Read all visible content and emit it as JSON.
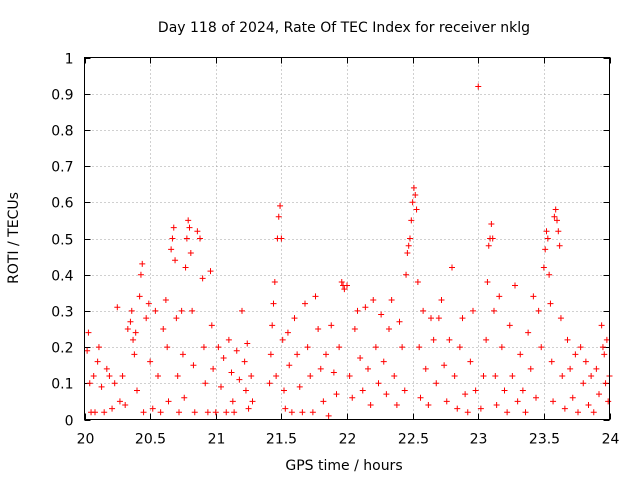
{
  "chart_data": {
    "type": "scatter",
    "title": "Day 118 of 2024, Rate Of TEC Index for receiver nklg",
    "xlabel": "GPS time / hours",
    "ylabel": "ROTI / TECUs",
    "xlim": [
      20,
      24
    ],
    "ylim": [
      0,
      1
    ],
    "xticks": [
      "20",
      "20.5",
      "21",
      "21.5",
      "22",
      "22.5",
      "23",
      "23.5",
      "24"
    ],
    "yticks": [
      "0",
      "0.1",
      "0.2",
      "0.3",
      "0.4",
      "0.5",
      "0.6",
      "0.7",
      "0.8",
      "0.9",
      "1"
    ],
    "grid": true,
    "marker": "+",
    "color": "#ff0000",
    "series": [
      {
        "points": [
          [
            20.02,
            0.19
          ],
          [
            20.03,
            0.24
          ],
          [
            20.04,
            0.1
          ],
          [
            20.05,
            0.02
          ],
          [
            20.07,
            0.12
          ],
          [
            20.08,
            0.02
          ],
          [
            20.1,
            0.16
          ],
          [
            20.11,
            0.2
          ],
          [
            20.13,
            0.09
          ],
          [
            20.15,
            0.02
          ],
          [
            20.17,
            0.14
          ],
          [
            20.19,
            0.12
          ],
          [
            20.21,
            0.03
          ],
          [
            20.23,
            0.1
          ],
          [
            20.25,
            0.31
          ],
          [
            20.27,
            0.05
          ],
          [
            20.29,
            0.12
          ],
          [
            20.31,
            0.04
          ],
          [
            20.33,
            0.25
          ],
          [
            20.35,
            0.27
          ],
          [
            20.36,
            0.3
          ],
          [
            20.37,
            0.22
          ],
          [
            20.38,
            0.18
          ],
          [
            20.39,
            0.24
          ],
          [
            20.4,
            0.08
          ],
          [
            20.42,
            0.34
          ],
          [
            20.43,
            0.4
          ],
          [
            20.44,
            0.43
          ],
          [
            20.45,
            0.02
          ],
          [
            20.47,
            0.28
          ],
          [
            20.49,
            0.32
          ],
          [
            20.5,
            0.16
          ],
          [
            20.52,
            0.03
          ],
          [
            20.54,
            0.3
          ],
          [
            20.56,
            0.12
          ],
          [
            20.58,
            0.02
          ],
          [
            20.6,
            0.25
          ],
          [
            20.62,
            0.33
          ],
          [
            20.63,
            0.2
          ],
          [
            20.64,
            0.05
          ],
          [
            20.66,
            0.47
          ],
          [
            20.67,
            0.5
          ],
          [
            20.68,
            0.53
          ],
          [
            20.69,
            0.44
          ],
          [
            20.7,
            0.28
          ],
          [
            20.71,
            0.12
          ],
          [
            20.72,
            0.02
          ],
          [
            20.74,
            0.3
          ],
          [
            20.75,
            0.18
          ],
          [
            20.76,
            0.06
          ],
          [
            20.77,
            0.42
          ],
          [
            20.78,
            0.5
          ],
          [
            20.79,
            0.55
          ],
          [
            20.8,
            0.53
          ],
          [
            20.81,
            0.46
          ],
          [
            20.82,
            0.3
          ],
          [
            20.83,
            0.15
          ],
          [
            20.84,
            0.02
          ],
          [
            20.86,
            0.52
          ],
          [
            20.88,
            0.5
          ],
          [
            20.9,
            0.39
          ],
          [
            20.91,
            0.2
          ],
          [
            20.92,
            0.1
          ],
          [
            20.94,
            0.02
          ],
          [
            20.96,
            0.41
          ],
          [
            20.97,
            0.26
          ],
          [
            20.98,
            0.14
          ],
          [
            21.0,
            0.02
          ],
          [
            21.02,
            0.2
          ],
          [
            21.04,
            0.09
          ],
          [
            21.06,
            0.17
          ],
          [
            21.08,
            0.02
          ],
          [
            21.1,
            0.22
          ],
          [
            21.12,
            0.13
          ],
          [
            21.13,
            0.05
          ],
          [
            21.14,
            0.02
          ],
          [
            21.16,
            0.19
          ],
          [
            21.18,
            0.11
          ],
          [
            21.2,
            0.3
          ],
          [
            21.22,
            0.16
          ],
          [
            21.23,
            0.08
          ],
          [
            21.24,
            0.21
          ],
          [
            21.25,
            0.03
          ],
          [
            21.27,
            0.12
          ],
          [
            21.28,
            0.05
          ],
          [
            21.41,
            0.1
          ],
          [
            21.42,
            0.18
          ],
          [
            21.43,
            0.26
          ],
          [
            21.44,
            0.32
          ],
          [
            21.45,
            0.38
          ],
          [
            21.46,
            0.12
          ],
          [
            21.47,
            0.5
          ],
          [
            21.48,
            0.56
          ],
          [
            21.49,
            0.59
          ],
          [
            21.5,
            0.5
          ],
          [
            21.51,
            0.22
          ],
          [
            21.52,
            0.08
          ],
          [
            21.53,
            0.03
          ],
          [
            21.55,
            0.24
          ],
          [
            21.56,
            0.15
          ],
          [
            21.58,
            0.02
          ],
          [
            21.6,
            0.28
          ],
          [
            21.62,
            0.18
          ],
          [
            21.64,
            0.09
          ],
          [
            21.66,
            0.02
          ],
          [
            21.68,
            0.32
          ],
          [
            21.7,
            0.2
          ],
          [
            21.72,
            0.12
          ],
          [
            21.74,
            0.02
          ],
          [
            21.76,
            0.34
          ],
          [
            21.78,
            0.25
          ],
          [
            21.8,
            0.14
          ],
          [
            21.82,
            0.05
          ],
          [
            21.84,
            0.18
          ],
          [
            21.86,
            0.01
          ],
          [
            21.88,
            0.26
          ],
          [
            21.9,
            0.13
          ],
          [
            21.92,
            0.07
          ],
          [
            21.94,
            0.2
          ],
          [
            21.96,
            0.38
          ],
          [
            21.97,
            0.37
          ],
          [
            21.98,
            0.36
          ],
          [
            22.0,
            0.37
          ],
          [
            22.02,
            0.12
          ],
          [
            22.04,
            0.06
          ],
          [
            22.06,
            0.25
          ],
          [
            22.08,
            0.3
          ],
          [
            22.1,
            0.17
          ],
          [
            22.12,
            0.08
          ],
          [
            22.14,
            0.31
          ],
          [
            22.16,
            0.14
          ],
          [
            22.18,
            0.04
          ],
          [
            22.2,
            0.33
          ],
          [
            22.22,
            0.2
          ],
          [
            22.24,
            0.1
          ],
          [
            22.26,
            0.29
          ],
          [
            22.28,
            0.16
          ],
          [
            22.3,
            0.07
          ],
          [
            22.32,
            0.25
          ],
          [
            22.34,
            0.33
          ],
          [
            22.36,
            0.12
          ],
          [
            22.38,
            0.04
          ],
          [
            22.4,
            0.27
          ],
          [
            22.42,
            0.2
          ],
          [
            22.44,
            0.08
          ],
          [
            22.45,
            0.4
          ],
          [
            22.46,
            0.46
          ],
          [
            22.47,
            0.48
          ],
          [
            22.48,
            0.5
          ],
          [
            22.49,
            0.55
          ],
          [
            22.5,
            0.6
          ],
          [
            22.51,
            0.64
          ],
          [
            22.52,
            0.62
          ],
          [
            22.53,
            0.58
          ],
          [
            22.54,
            0.38
          ],
          [
            22.55,
            0.2
          ],
          [
            22.56,
            0.06
          ],
          [
            22.58,
            0.3
          ],
          [
            22.6,
            0.14
          ],
          [
            22.62,
            0.04
          ],
          [
            22.64,
            0.28
          ],
          [
            22.66,
            0.22
          ],
          [
            22.68,
            0.1
          ],
          [
            22.7,
            0.28
          ],
          [
            22.72,
            0.33
          ],
          [
            22.74,
            0.15
          ],
          [
            22.76,
            0.05
          ],
          [
            22.78,
            0.22
          ],
          [
            22.8,
            0.42
          ],
          [
            22.82,
            0.12
          ],
          [
            22.84,
            0.03
          ],
          [
            22.86,
            0.2
          ],
          [
            22.88,
            0.28
          ],
          [
            22.9,
            0.07
          ],
          [
            22.92,
            0.02
          ],
          [
            22.94,
            0.16
          ],
          [
            22.96,
            0.3
          ],
          [
            22.98,
            0.08
          ],
          [
            23.0,
            0.92
          ],
          [
            23.02,
            0.03
          ],
          [
            23.04,
            0.12
          ],
          [
            23.06,
            0.22
          ],
          [
            23.07,
            0.38
          ],
          [
            23.08,
            0.48
          ],
          [
            23.09,
            0.5
          ],
          [
            23.1,
            0.54
          ],
          [
            23.11,
            0.5
          ],
          [
            23.12,
            0.3
          ],
          [
            23.13,
            0.12
          ],
          [
            23.14,
            0.04
          ],
          [
            23.16,
            0.34
          ],
          [
            23.18,
            0.2
          ],
          [
            23.2,
            0.08
          ],
          [
            23.22,
            0.02
          ],
          [
            23.24,
            0.26
          ],
          [
            23.26,
            0.12
          ],
          [
            23.28,
            0.37
          ],
          [
            23.3,
            0.05
          ],
          [
            23.32,
            0.18
          ],
          [
            23.34,
            0.08
          ],
          [
            23.36,
            0.02
          ],
          [
            23.38,
            0.24
          ],
          [
            23.4,
            0.14
          ],
          [
            23.42,
            0.34
          ],
          [
            23.44,
            0.06
          ],
          [
            23.46,
            0.3
          ],
          [
            23.48,
            0.2
          ],
          [
            23.5,
            0.42
          ],
          [
            23.51,
            0.47
          ],
          [
            23.52,
            0.52
          ],
          [
            23.53,
            0.5
          ],
          [
            23.54,
            0.4
          ],
          [
            23.55,
            0.32
          ],
          [
            23.56,
            0.16
          ],
          [
            23.57,
            0.05
          ],
          [
            23.58,
            0.56
          ],
          [
            23.59,
            0.58
          ],
          [
            23.6,
            0.55
          ],
          [
            23.61,
            0.52
          ],
          [
            23.62,
            0.48
          ],
          [
            23.63,
            0.28
          ],
          [
            23.64,
            0.12
          ],
          [
            23.66,
            0.03
          ],
          [
            23.68,
            0.22
          ],
          [
            23.7,
            0.14
          ],
          [
            23.72,
            0.06
          ],
          [
            23.74,
            0.18
          ],
          [
            23.76,
            0.02
          ],
          [
            23.78,
            0.2
          ],
          [
            23.8,
            0.1
          ],
          [
            23.82,
            0.16
          ],
          [
            23.84,
            0.04
          ],
          [
            23.86,
            0.12
          ],
          [
            23.88,
            0.02
          ],
          [
            23.9,
            0.14
          ],
          [
            23.92,
            0.07
          ],
          [
            23.94,
            0.26
          ],
          [
            23.95,
            0.2
          ],
          [
            23.96,
            0.18
          ],
          [
            23.97,
            0.1
          ],
          [
            23.98,
            0.22
          ],
          [
            23.99,
            0.05
          ],
          [
            24.0,
            0.12
          ]
        ]
      }
    ]
  }
}
